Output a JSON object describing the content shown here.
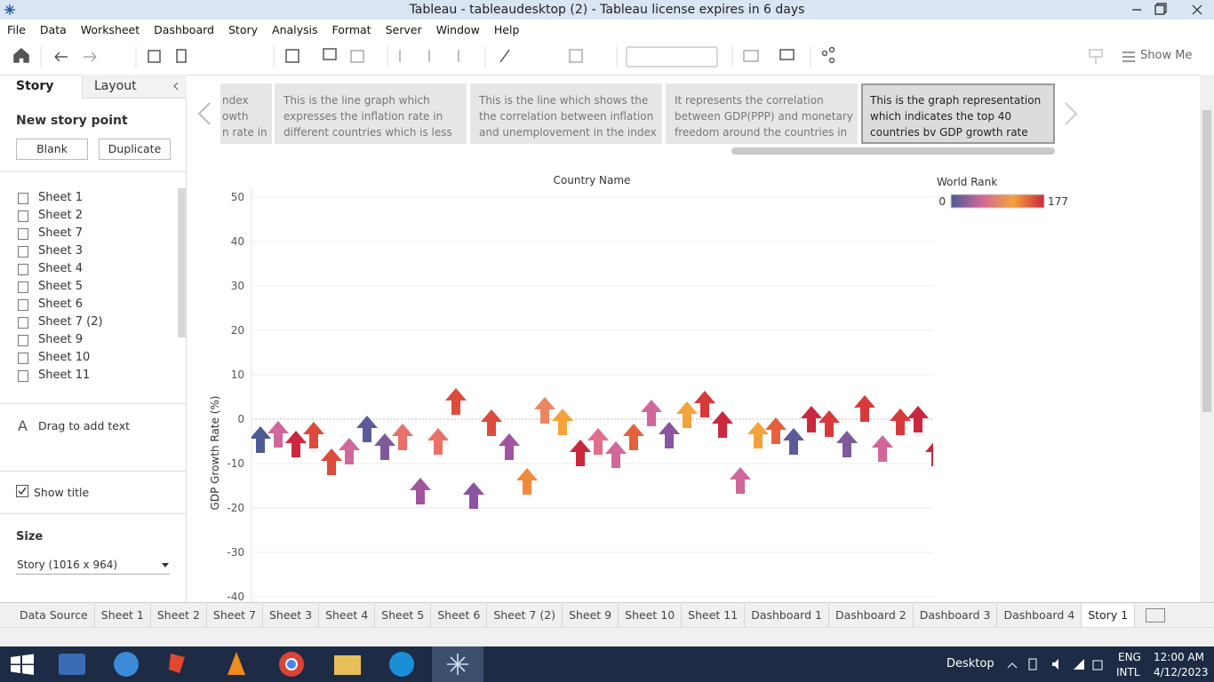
{
  "window": {
    "title": "Tableau - tableaudesktop (2) - Tableau license expires in 6 days"
  },
  "menu": [
    "File",
    "Data",
    "Worksheet",
    "Dashboard",
    "Story",
    "Analysis",
    "Format",
    "Server",
    "Window",
    "Help"
  ],
  "toolbar": {
    "show_me": "Show Me"
  },
  "sidebar": {
    "tabs": [
      "Story",
      "Layout"
    ],
    "new_story_point": "New story point",
    "buttons": [
      "Blank",
      "Duplicate"
    ],
    "sheets": [
      "Sheet 1",
      "Sheet 2",
      "Sheet 7",
      "Sheet 3",
      "Sheet 4",
      "Sheet 5",
      "Sheet 6",
      "Sheet 7 (2)",
      "Sheet 9",
      "Sheet 10",
      "Sheet 11"
    ],
    "drag_text": "Drag to add text",
    "show_title": "Show title",
    "size_label": "Size",
    "size_value": "Story (1016 x 964)"
  },
  "story_points": [
    [
      "ndex",
      "owth",
      "n rate in"
    ],
    [
      "This is the line graph which",
      "expresses the inflation rate in",
      "different countries which is less"
    ],
    [
      "This is the line which shows the",
      "the correlation between inflation",
      "and unemplovement in the index"
    ],
    [
      "It represents the correlation",
      "between GDP(PPP) and monetary",
      "freedom around the countries in"
    ],
    [
      "This is the graph representation",
      "which indicates the top 40",
      "countries bv GDP growth rate"
    ]
  ],
  "chart_data": {
    "type": "scatter",
    "x_label": "Country Name",
    "y_label": "GDP Growth Rate (%)",
    "categories": [
      null,
      null,
      null,
      null,
      null,
      null,
      null,
      null,
      null,
      null,
      null,
      null,
      null,
      null,
      null,
      null,
      null,
      null,
      null,
      null,
      null,
      null,
      null,
      null,
      null,
      null,
      null,
      null,
      null,
      null,
      null,
      null,
      null,
      null,
      null,
      null,
      null,
      null,
      null
    ],
    "values": [
      -4.6,
      -3.4,
      -5.6,
      -3.6,
      -9.6,
      -7.2,
      -2.2,
      -6.2,
      -4,
      -16.2,
      -5,
      4,
      -17.2,
      -0.8,
      -6.2,
      -14,
      2,
      -0.6,
      -7.6,
      -5,
      -8,
      -4,
      1.4,
      -3.6,
      1,
      3.4,
      -1.2,
      -13.8,
      -3.6,
      -2.6,
      -5,
      0,
      -1,
      -5.6,
      2.4,
      -6.6,
      -0.6,
      0,
      -7.6
    ],
    "colors": [
      "#4e5a96",
      "#d0679a",
      "#c9283e",
      "#dc4b3c",
      "#dc4b3c",
      "#d0679a",
      "#5b5b99",
      "#7e5a9b",
      "#e8726a",
      "#a1559e",
      "#e8726a",
      "#dc4b3c",
      "#8a55a0",
      "#dc4b3c",
      "#a1559e",
      "#ef8a3c",
      "#ec8561",
      "#f4a23c",
      "#c9283e",
      "#e0708a",
      "#d0679a",
      "#e5603c",
      "#d0679a",
      "#8a55a0",
      "#f4a23c",
      "#d83a3c",
      "#c9283e",
      "#d0679a",
      "#f4a23c",
      "#e5603c",
      "#5b5b99",
      "#c9283e",
      "#d83a3c",
      "#7e5a9b",
      "#d83a3c",
      "#d0679a",
      "#d83a3c",
      "#c9283e",
      "#c9283e"
    ],
    "ylim": [
      -40,
      50
    ],
    "yticks": [
      -40,
      -30,
      -20,
      -10,
      0,
      10,
      20,
      30,
      40,
      50
    ],
    "grid": true,
    "legend": {
      "title": "World Rank",
      "min": 0,
      "max": 177,
      "colorscale": [
        "#4e5a96",
        "#d0679a",
        "#f4a23c",
        "#c9283e"
      ]
    }
  },
  "sheet_tabs": [
    "Data Source",
    "Sheet 1",
    "Sheet 2",
    "Sheet 7",
    "Sheet 3",
    "Sheet 4",
    "Sheet 5",
    "Sheet 6",
    "Sheet 7 (2)",
    "Sheet 9",
    "Sheet 10",
    "Sheet 11",
    "Dashboard 1",
    "Dashboard 2",
    "Dashboard 3",
    "Dashboard 4",
    "Story 1"
  ],
  "taskbar": {
    "desktop": "Desktop",
    "lang": [
      "ENG",
      "INTL"
    ],
    "time": "12:00 AM",
    "date": "4/12/2023"
  }
}
